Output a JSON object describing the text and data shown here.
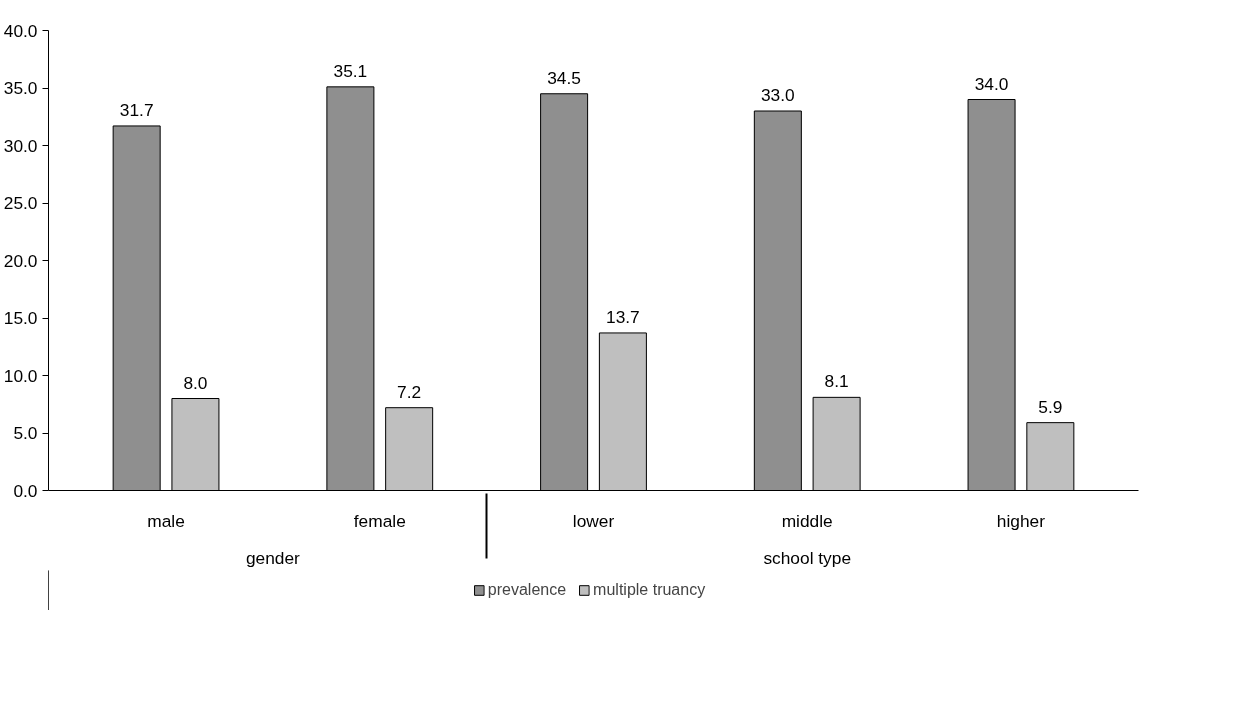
{
  "chart_data": {
    "type": "bar",
    "categories": [
      "male",
      "female",
      "lower",
      "middle",
      "higher"
    ],
    "annotations": [
      "gender",
      "school type"
    ],
    "series": [
      {
        "name": "prevalence",
        "color": "#8f8f8f",
        "values": [
          31.7,
          35.1,
          34.5,
          33.0,
          34.0
        ],
        "value_labels": [
          "31.7",
          "35.1",
          "34.5",
          "33.0",
          "34.0"
        ]
      },
      {
        "name": "multiple truancy",
        "color": "#bfbfbf",
        "values": [
          8.0,
          7.2,
          13.7,
          8.1,
          5.9
        ],
        "value_labels": [
          "8.0",
          "7.2",
          "13.7",
          "8.1",
          "5.9"
        ]
      }
    ],
    "ylim": [
      0,
      40
    ],
    "yticks": [
      {
        "value": 0,
        "label": "0.0"
      },
      {
        "value": 5,
        "label": "5.0"
      },
      {
        "value": 10,
        "label": "10.0"
      },
      {
        "value": 15,
        "label": "15.0"
      },
      {
        "value": 20,
        "label": "20.0"
      },
      {
        "value": 25,
        "label": "25.0"
      },
      {
        "value": 30,
        "label": "30.0"
      },
      {
        "value": 35,
        "label": "35.0"
      },
      {
        "value": 40,
        "label": "40.0"
      }
    ],
    "grid": false,
    "legend": "bottom"
  }
}
